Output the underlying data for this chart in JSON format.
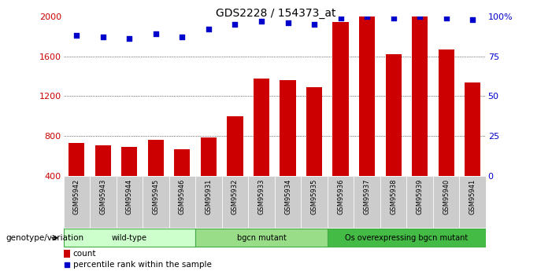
{
  "title": "GDS2228 / 154373_at",
  "samples": [
    "GSM95942",
    "GSM95943",
    "GSM95944",
    "GSM95945",
    "GSM95946",
    "GSM95931",
    "GSM95932",
    "GSM95933",
    "GSM95934",
    "GSM95935",
    "GSM95936",
    "GSM95937",
    "GSM95938",
    "GSM95939",
    "GSM95940",
    "GSM95941"
  ],
  "counts": [
    730,
    710,
    690,
    760,
    670,
    790,
    1000,
    1380,
    1360,
    1290,
    1940,
    2000,
    1620,
    2000,
    1670,
    1340
  ],
  "percentiles": [
    88,
    87,
    86,
    89,
    87,
    92,
    95,
    97,
    96,
    95,
    99,
    100,
    99,
    100,
    99,
    98
  ],
  "bar_color": "#cc0000",
  "dot_color": "#0000cc",
  "ylim_left": [
    400,
    2000
  ],
  "ylim_right": [
    0,
    100
  ],
  "yticks_left": [
    400,
    800,
    1200,
    1600,
    2000
  ],
  "yticks_right": [
    0,
    25,
    50,
    75,
    100
  ],
  "groups": [
    {
      "label": "wild-type",
      "start": 0,
      "end": 5,
      "color": "#ccffcc",
      "border": "#44aa44"
    },
    {
      "label": "bgcn mutant",
      "start": 5,
      "end": 10,
      "color": "#99dd88",
      "border": "#44aa44"
    },
    {
      "label": "Os overexpressing bgcn mutant",
      "start": 10,
      "end": 16,
      "color": "#44bb44",
      "border": "#44aa44"
    }
  ],
  "xlabel_left": "genotype/variation",
  "legend_count_label": "count",
  "legend_pct_label": "percentile rank within the sample",
  "bg_color": "#ffffff",
  "grid_color": "#000000",
  "tick_label_color_left": "#cc0000",
  "tick_label_color_right": "#0000cc",
  "title_color": "#000000",
  "xtick_bg_color": "#cccccc"
}
